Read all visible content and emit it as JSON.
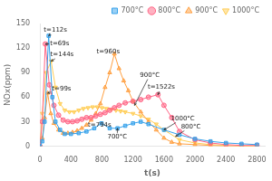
{
  "chart_data": {
    "type": "line",
    "xlabel": "t(s)",
    "ylabel": "NOx(ppm)",
    "xlim": [
      0,
      2900
    ],
    "ylim": [
      0,
      150
    ],
    "xticks": [
      0,
      400,
      800,
      1200,
      1600,
      2000,
      2400,
      2800
    ],
    "yticks": [
      0,
      30,
      60,
      90,
      120,
      150
    ],
    "grid": false,
    "legend": "upper right",
    "series": [
      {
        "name": "700°C",
        "marker": "square",
        "x": [
          0,
          30,
          60,
          112,
          160,
          200,
          260,
          320,
          400,
          500,
          600,
          700,
          794,
          900,
          1000,
          1100,
          1200,
          1300,
          1400,
          1600,
          1800,
          2000,
          2200,
          2400,
          2600,
          2800
        ],
        "values": [
          0,
          6,
          30,
          135,
          60,
          30,
          20,
          15,
          15,
          16,
          18,
          22,
          28,
          22,
          22,
          25,
          28,
          30,
          27,
          20,
          14,
          9,
          6,
          4,
          3,
          2
        ]
      },
      {
        "name": "800°C",
        "marker": "circle",
        "x": [
          0,
          30,
          69,
          120,
          180,
          240,
          300,
          360,
          420,
          480,
          540,
          600,
          660,
          720,
          780,
          840,
          900,
          960,
          1020,
          1100,
          1200,
          1300,
          1400,
          1522,
          1600,
          1700,
          1800,
          2000,
          2200,
          2400,
          2600,
          2800
        ],
        "values": [
          0,
          30,
          125,
          75,
          50,
          38,
          32,
          30,
          30,
          31,
          33,
          35,
          35,
          37,
          39,
          41,
          44,
          47,
          50,
          53,
          55,
          57,
          60,
          63,
          50,
          35,
          18,
          8,
          4,
          2,
          1,
          1
        ]
      },
      {
        "name": "900°C",
        "marker": "triangle_up",
        "x": [
          0,
          30,
          60,
          99,
          140,
          180,
          240,
          300,
          360,
          420,
          480,
          540,
          600,
          660,
          720,
          780,
          840,
          900,
          960,
          1020,
          1080,
          1140,
          1200,
          1300,
          1400,
          1500,
          1600,
          1700,
          1800,
          2000,
          2200,
          2400,
          2600,
          2800
        ],
        "values": [
          0,
          10,
          35,
          65,
          40,
          28,
          20,
          16,
          16,
          17,
          19,
          22,
          26,
          32,
          40,
          52,
          72,
          90,
          113,
          95,
          80,
          68,
          55,
          42,
          30,
          20,
          10,
          5,
          3,
          2,
          1,
          0,
          0,
          0
        ]
      },
      {
        "name": "1000°C",
        "marker": "triangle_down",
        "x": [
          0,
          30,
          80,
          144,
          200,
          260,
          320,
          380,
          440,
          500,
          560,
          620,
          680,
          740,
          800,
          860,
          920,
          980,
          1040,
          1100,
          1200,
          1300,
          1400,
          1500,
          1600,
          1800,
          2000,
          2200,
          2400,
          2600,
          2800
        ],
        "values": [
          0,
          40,
          90,
          104,
          72,
          52,
          44,
          42,
          42,
          44,
          46,
          47,
          48,
          48,
          47,
          46,
          45,
          44,
          43,
          42,
          40,
          37,
          33,
          27,
          20,
          8,
          4,
          2,
          1,
          0,
          0
        ]
      }
    ],
    "annotations": [
      {
        "text": "t=112s",
        "xy": [
          112,
          135
        ],
        "xytext": [
          50,
          140
        ]
      },
      {
        "text": "t=69s",
        "xy": [
          69,
          125
        ],
        "xytext": [
          130,
          123
        ]
      },
      {
        "text": "t=144s",
        "xy": [
          144,
          104
        ],
        "xytext": [
          135,
          110
        ]
      },
      {
        "text": "t=99s",
        "xy": [
          99,
          65
        ],
        "xytext": [
          155,
          68
        ]
      },
      {
        "text": "t=960s",
        "xy": [
          960,
          113
        ],
        "xytext": [
          730,
          113
        ]
      },
      {
        "text": "t=794s",
        "xy": [
          794,
          28
        ],
        "xytext": [
          620,
          24
        ]
      },
      {
        "text": "t=1522s",
        "xy": [
          1522,
          63
        ],
        "xytext": [
          1390,
          70
        ]
      },
      {
        "text": "900°C",
        "xy": [
          1220,
          50
        ],
        "xytext": [
          1290,
          85
        ]
      },
      {
        "text": "800°C",
        "xy": [
          1750,
          12
        ],
        "xytext": [
          1820,
          22
        ]
      },
      {
        "text": "1000°C",
        "xy": [
          1600,
          20
        ],
        "xytext": [
          1690,
          32
        ]
      },
      {
        "text": "700°C",
        "xy": [
          1000,
          22
        ],
        "xytext": [
          870,
          9
        ]
      }
    ]
  }
}
